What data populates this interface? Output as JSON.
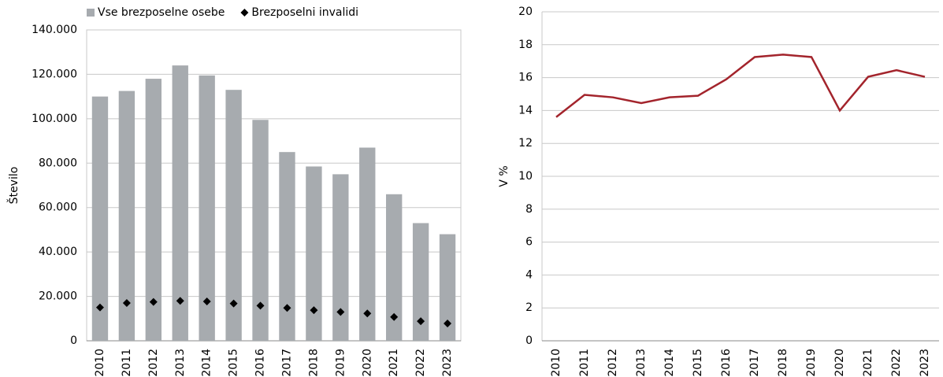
{
  "chart_data": [
    {
      "type": "bar",
      "ylabel": "Število",
      "categories": [
        "2010",
        "2011",
        "2012",
        "2013",
        "2014",
        "2015",
        "2016",
        "2017",
        "2018",
        "2019",
        "2020",
        "2021",
        "2022",
        "2023"
      ],
      "series": [
        {
          "name": "Vse brezposelne osebe",
          "type": "bar",
          "color": "#a7abaf",
          "values": [
            110000,
            112500,
            118000,
            124000,
            119500,
            113000,
            99500,
            85000,
            78500,
            75000,
            87000,
            66000,
            53000,
            48000
          ]
        },
        {
          "name": "Brezposelni invalidi",
          "type": "scatter",
          "color": "#000000",
          "values": [
            15000,
            17000,
            17500,
            18000,
            17700,
            16800,
            15800,
            14800,
            13800,
            13000,
            12300,
            10700,
            8800,
            7800
          ]
        }
      ],
      "ylim": [
        0,
        140000
      ],
      "yticks": [
        0,
        {
          "value": 20000,
          "label": "20.000"
        },
        {
          "value": 40000,
          "label": "40.000"
        },
        {
          "value": 60000,
          "label": "60.000"
        },
        {
          "value": 80000,
          "label": "80.000"
        },
        {
          "value": 100000,
          "label": "100.000"
        },
        {
          "value": 120000,
          "label": "120.000"
        },
        {
          "value": 140000,
          "label": "140.000"
        }
      ],
      "grid": true,
      "legend": "top"
    },
    {
      "type": "line",
      "ylabel": "V %",
      "categories": [
        "2010",
        "2011",
        "2012",
        "2013",
        "2014",
        "2015",
        "2016",
        "2017",
        "2018",
        "2019",
        "2020",
        "2021",
        "2022",
        "2023"
      ],
      "series": [
        {
          "name": null,
          "color": "#a3242c",
          "values": [
            13.6,
            14.95,
            14.8,
            14.45,
            14.8,
            14.9,
            15.9,
            17.25,
            17.4,
            17.25,
            14.0,
            16.05,
            16.45,
            16.05
          ]
        }
      ],
      "ylim": [
        0,
        20
      ],
      "yticks": [
        0,
        2,
        4,
        6,
        8,
        10,
        12,
        14,
        16,
        18,
        20
      ],
      "grid": true
    }
  ]
}
